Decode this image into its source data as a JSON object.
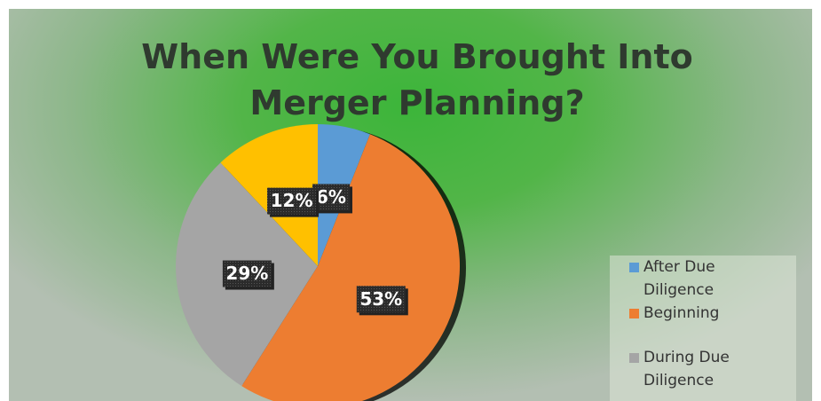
{
  "chart_data": {
    "type": "pie",
    "title": "When Were You Brought Into Merger Planning?",
    "categories": [
      "After Due Diligence",
      "Beginning",
      "During Due Diligence",
      null
    ],
    "values": [
      6,
      53,
      29,
      12
    ],
    "value_labels": [
      "6%",
      "53%",
      "29%",
      "12%"
    ],
    "colors": [
      "#5b9bd5",
      "#ed7d31",
      "#a5a5a5",
      "#ffc000"
    ],
    "legend": "right"
  }
}
